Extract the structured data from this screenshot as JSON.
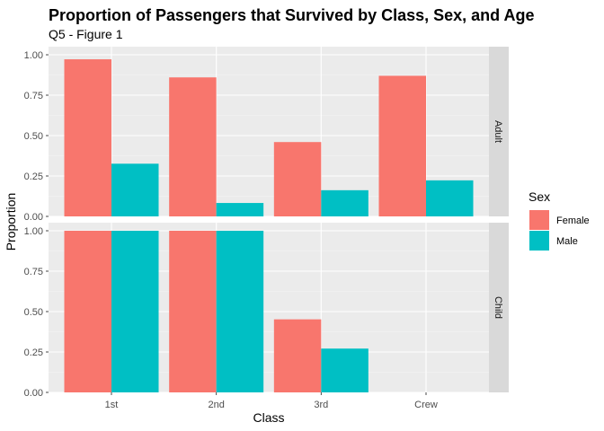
{
  "chart_data": {
    "type": "bar",
    "title": "Proportion of Passengers that Survived by Class, Sex, and Age",
    "subtitle": "Q5 - Figure 1",
    "xlabel": "Class",
    "ylabel": "Proportion",
    "categories": [
      "1st",
      "2nd",
      "3rd",
      "Crew"
    ],
    "y_ticks": [
      "0.00",
      "0.25",
      "0.50",
      "0.75",
      "1.00"
    ],
    "ylim": [
      0,
      1.05
    ],
    "grid": true,
    "legend": {
      "title": "Sex",
      "position": "right",
      "entries": [
        "Female",
        "Male"
      ]
    },
    "colors": {
      "Female": "#F8766D",
      "Male": "#00BFC4"
    },
    "panels": [
      {
        "label": "Adult",
        "series": [
          {
            "name": "Female",
            "values": [
              0.972,
              0.86,
              0.46,
              0.87
            ]
          },
          {
            "name": "Male",
            "values": [
              0.326,
              0.083,
              0.162,
              0.223
            ]
          }
        ]
      },
      {
        "label": "Child",
        "series": [
          {
            "name": "Female",
            "values": [
              1.0,
              1.0,
              0.452,
              null
            ]
          },
          {
            "name": "Male",
            "values": [
              1.0,
              1.0,
              0.271,
              null
            ]
          }
        ]
      }
    ]
  }
}
